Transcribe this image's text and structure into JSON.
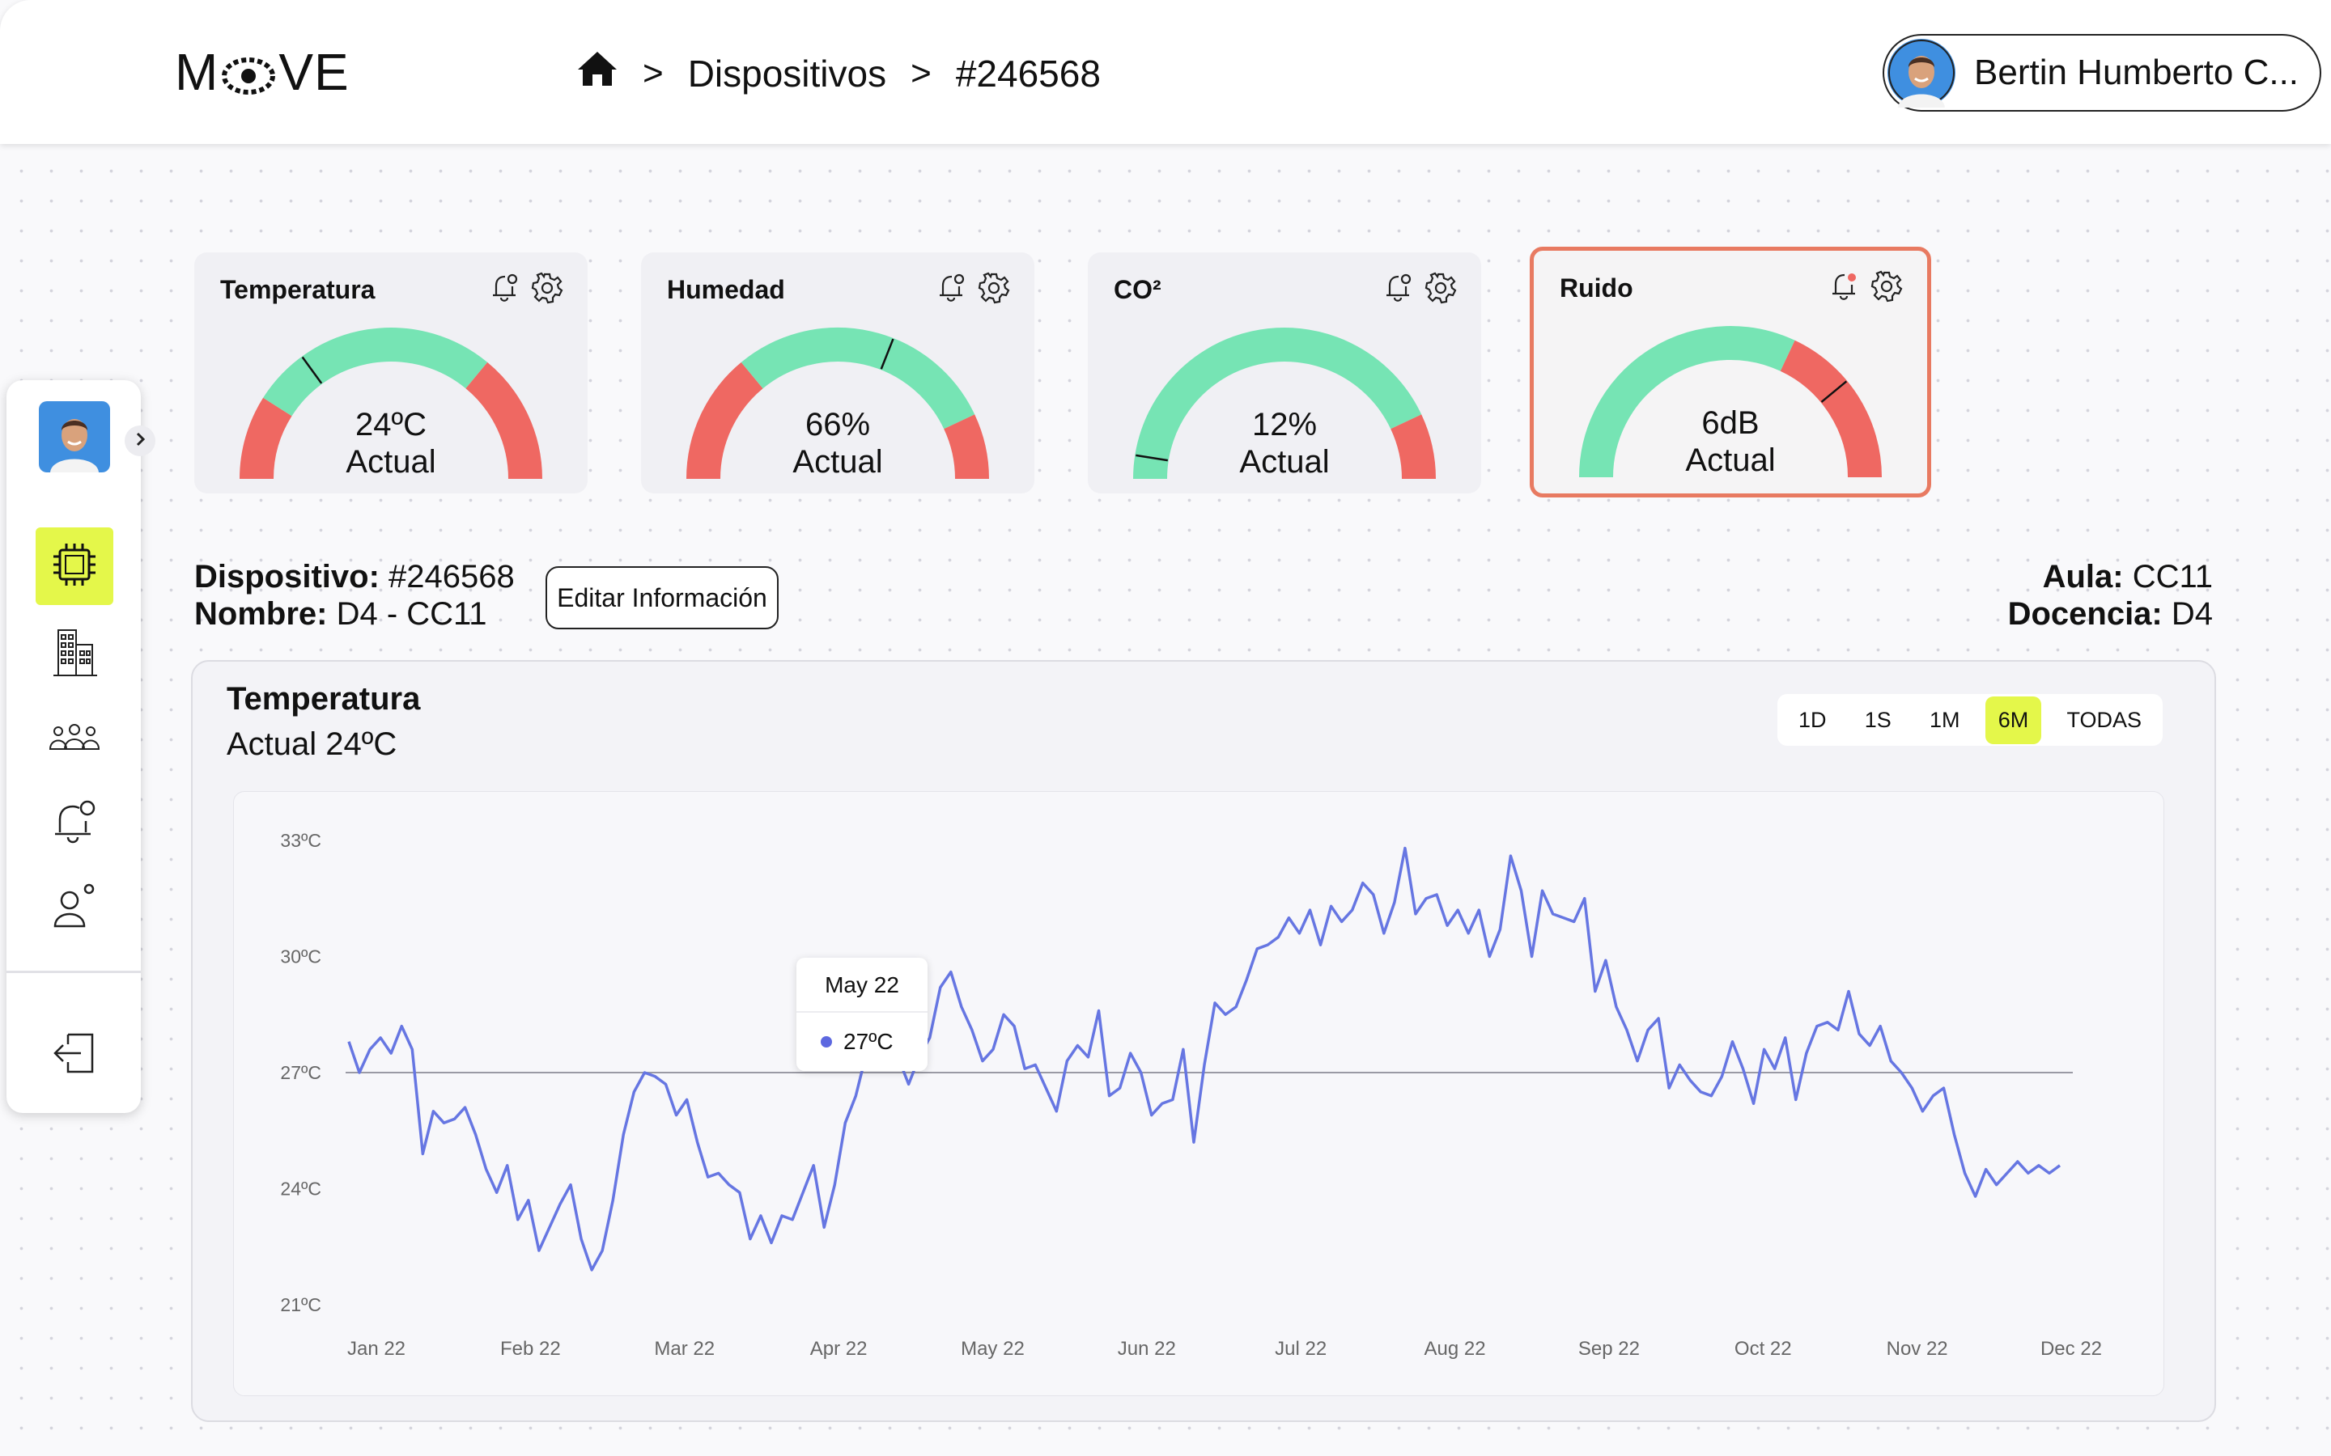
{
  "brand": {
    "logo_start": "M",
    "logo_end": "VE"
  },
  "breadcrumb": {
    "items": [
      "Dispositivos",
      "#246568"
    ]
  },
  "user": {
    "name": "Bertin Humberto C..."
  },
  "gauges": [
    {
      "title": "Temperatura",
      "value": "24ºC",
      "caption": "Actual",
      "needle": 0.3,
      "band_start": 0.18,
      "band_end": 0.72
    },
    {
      "title": "Humedad",
      "value": "66%",
      "caption": "Actual",
      "needle": 0.62,
      "band_start": 0.28,
      "band_end": 0.86
    },
    {
      "title": "CO²",
      "value": "12%",
      "caption": "Actual",
      "needle": 0.05,
      "band_start": 0.0,
      "band_end": 0.86
    },
    {
      "title": "Ruido",
      "value": "6dB",
      "caption": "Actual",
      "needle": 0.78,
      "band_start": 0.0,
      "band_end": 0.64
    }
  ],
  "device": {
    "dispositivo_label": "Dispositivo:",
    "dispositivo_value": " #246568",
    "nombre_label": "Nombre:",
    "nombre_value": " D4 - CC11",
    "edit_label": "Editar Información",
    "aula_label": "Aula:",
    "aula_value": " CC11",
    "docencia_label": "Docencia:",
    "docencia_value": " D4"
  },
  "chart_panel": {
    "title": "Temperatura",
    "subtitle": "Actual 24ºC",
    "ranges": [
      "1D",
      "1S",
      "1M",
      "6M",
      "TODAS"
    ],
    "active_range": "6M"
  },
  "tooltip": {
    "date": "May 22",
    "value": "27ºC"
  },
  "colors": {
    "accent": "#e4f74a",
    "good": "#76e4b4",
    "bad": "#ef6862",
    "line": "#6676e2",
    "alert_border": "#e87a61"
  },
  "chart_data": {
    "type": "line",
    "title": "Temperatura",
    "x_ticks": [
      "Jan 22",
      "Feb 22",
      "Mar 22",
      "Apr 22",
      "May 22",
      "Jun 22",
      "Jul 22",
      "Aug 22",
      "Sep 22",
      "Oct 22",
      "Nov 22",
      "Dec 22"
    ],
    "y_ticks": [
      "33ºC",
      "30ºC",
      "27ºC",
      "24ºC",
      "21ºC"
    ],
    "ylim": [
      21,
      33
    ],
    "reference_line": 27,
    "series": [
      {
        "values": [
          27.8,
          27.0,
          27.6,
          27.9,
          27.5,
          28.2,
          27.6,
          24.9,
          26.0,
          25.7,
          25.8,
          26.1,
          25.4,
          24.5,
          23.9,
          24.6,
          23.2,
          23.7,
          22.4,
          23.0,
          23.6,
          24.1,
          22.7,
          21.9,
          22.4,
          23.7,
          25.4,
          26.5,
          27.0,
          26.9,
          26.7,
          25.9,
          26.3,
          25.2,
          24.3,
          24.4,
          24.1,
          23.9,
          22.7,
          23.3,
          22.6,
          23.3,
          23.2,
          23.9,
          24.6,
          23.0,
          24.1,
          25.7,
          26.4,
          27.5,
          27.9,
          28.1,
          27.4,
          26.7,
          27.4,
          27.9,
          29.2,
          29.6,
          28.7,
          28.1,
          27.3,
          27.6,
          28.5,
          28.2,
          27.1,
          27.2,
          26.6,
          26.0,
          27.3,
          27.7,
          27.4,
          28.6,
          26.4,
          26.6,
          27.5,
          27.0,
          25.9,
          26.2,
          26.3,
          27.6,
          25.2,
          27.2,
          28.8,
          28.5,
          28.7,
          29.4,
          30.2,
          30.3,
          30.5,
          31.0,
          30.6,
          31.2,
          30.3,
          31.3,
          30.9,
          31.2,
          31.9,
          31.6,
          30.6,
          31.4,
          32.8,
          31.1,
          31.5,
          31.6,
          30.8,
          31.2,
          30.6,
          31.2,
          30.0,
          30.7,
          32.6,
          31.7,
          30.0,
          31.7,
          31.1,
          31.0,
          30.9,
          31.5,
          29.1,
          29.9,
          28.7,
          28.1,
          27.3,
          28.1,
          28.4,
          26.6,
          27.2,
          26.8,
          26.5,
          26.4,
          26.9,
          27.8,
          27.1,
          26.2,
          27.6,
          27.1,
          27.9,
          26.3,
          27.5,
          28.2,
          28.3,
          28.1,
          29.1,
          28.0,
          27.7,
          28.2,
          27.3,
          27.0,
          26.6,
          26.0,
          26.4,
          26.6,
          25.4,
          24.4,
          23.8,
          24.5,
          24.1,
          24.4,
          24.7,
          24.4,
          24.6,
          24.4,
          24.6
        ]
      }
    ]
  }
}
